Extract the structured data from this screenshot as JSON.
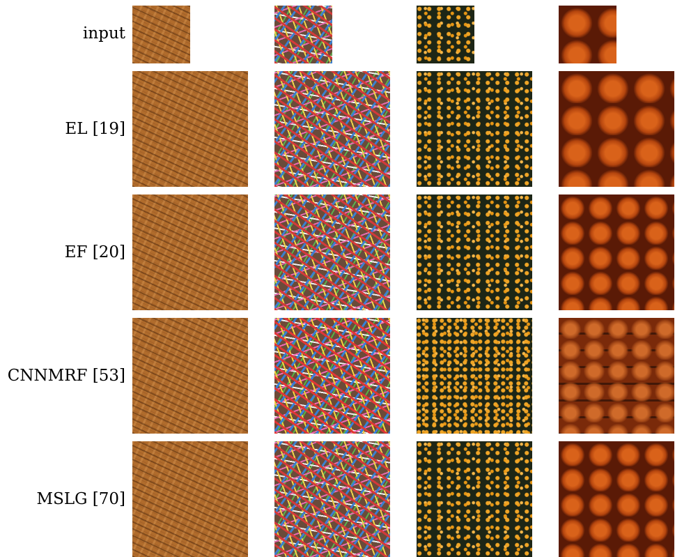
{
  "rows": [
    {
      "label": "input"
    },
    {
      "label": "EL [19]"
    },
    {
      "label": "EF [20]"
    },
    {
      "label": "CNNMRF [53]"
    },
    {
      "label": "MSLG [70]"
    }
  ],
  "columns": [
    "woven straw texture",
    "colorful sprinkles texture",
    "orange flowers texture",
    "pumpkins texture"
  ]
}
